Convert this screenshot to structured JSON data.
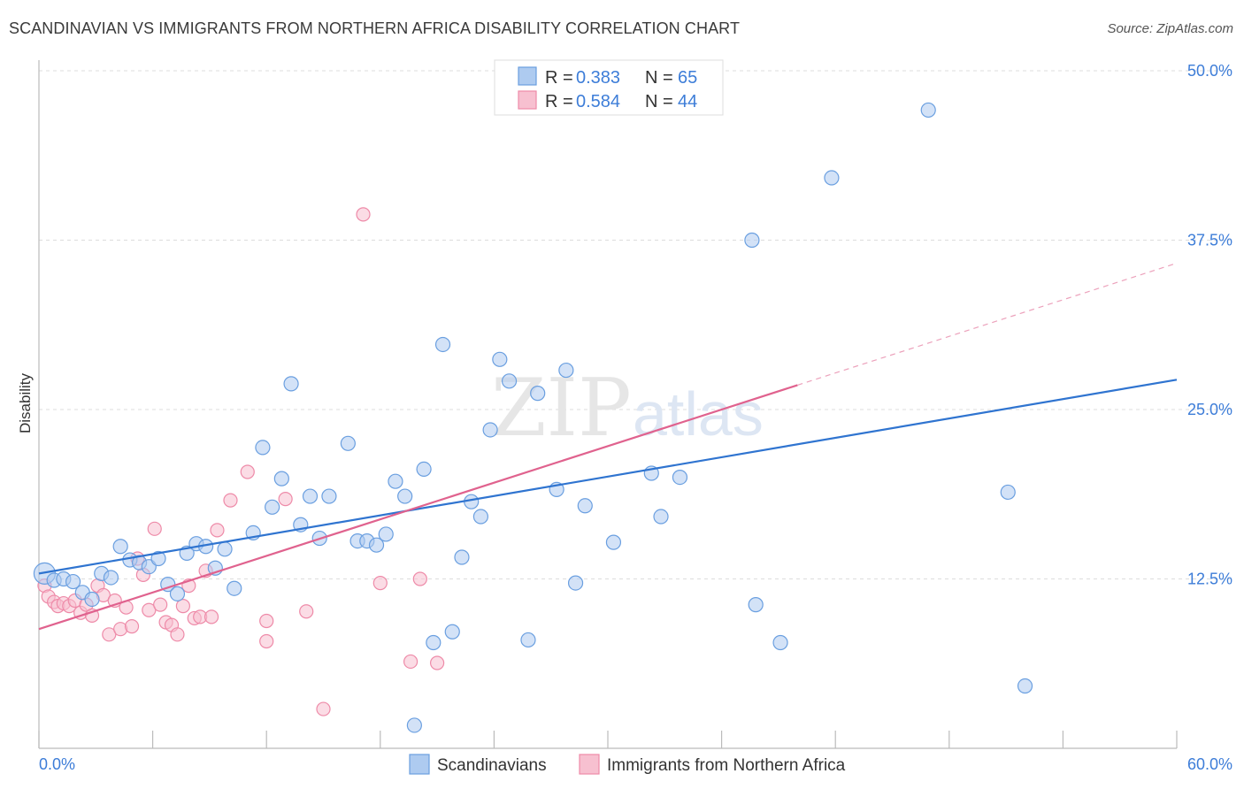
{
  "title": "SCANDINAVIAN VS IMMIGRANTS FROM NORTHERN AFRICA DISABILITY CORRELATION CHART",
  "source": "Source: ZipAtlas.com",
  "watermark": {
    "left": "ZIP",
    "right": "atlas"
  },
  "colors": {
    "blue_fill": "#aecbf0",
    "blue_stroke": "#6a9fe0",
    "blue_line": "#2f74d0",
    "pink_fill": "#f7c0d0",
    "pink_stroke": "#ee8aa8",
    "pink_line": "#e0628e",
    "tick_text": "#3d7dd8",
    "grid": "#dddddd"
  },
  "legend": {
    "rows": [
      {
        "r_label": "R = ",
        "r_value": "0.383",
        "n_label": "N = ",
        "n_value": "65"
      },
      {
        "r_label": "R = ",
        "r_value": "0.584",
        "n_label": "N = ",
        "n_value": "44"
      }
    ],
    "bottom": [
      "Scandinavians",
      "Immigrants from Northern Africa"
    ]
  },
  "chart_data": {
    "type": "scatter",
    "title": "SCANDINAVIAN VS IMMIGRANTS FROM NORTHERN AFRICA DISABILITY CORRELATION CHART",
    "xlabel": "",
    "ylabel": "Disability",
    "xlim": [
      0,
      60
    ],
    "ylim": [
      0,
      50
    ],
    "x_ticks": [
      0,
      6,
      12,
      18,
      24,
      30,
      36,
      42,
      48,
      54,
      60
    ],
    "x_tick_labels": {
      "0": "0.0%",
      "60": "60.0%"
    },
    "y_ticks": [
      12.5,
      25.0,
      37.5,
      50.0
    ],
    "y_tick_labels": [
      "12.5%",
      "25.0%",
      "37.5%",
      "50.0%"
    ],
    "grid": true,
    "legend_placement": "top-center",
    "series": [
      {
        "name": "Scandinavians",
        "color": "#aecbf0",
        "points": [
          [
            0.3,
            12.9
          ],
          [
            0.8,
            12.4
          ],
          [
            1.3,
            12.5
          ],
          [
            1.8,
            12.3
          ],
          [
            2.3,
            11.5
          ],
          [
            2.8,
            11.0
          ],
          [
            3.3,
            12.9
          ],
          [
            3.8,
            12.6
          ],
          [
            4.3,
            14.9
          ],
          [
            4.8,
            13.9
          ],
          [
            5.3,
            13.7
          ],
          [
            5.8,
            13.4
          ],
          [
            6.3,
            14.0
          ],
          [
            6.8,
            12.1
          ],
          [
            7.3,
            11.4
          ],
          [
            7.8,
            14.4
          ],
          [
            8.3,
            15.1
          ],
          [
            8.8,
            14.9
          ],
          [
            9.3,
            13.3
          ],
          [
            9.8,
            14.7
          ],
          [
            10.3,
            11.8
          ],
          [
            11.3,
            15.9
          ],
          [
            11.8,
            22.2
          ],
          [
            12.3,
            17.8
          ],
          [
            12.8,
            19.9
          ],
          [
            13.3,
            26.9
          ],
          [
            13.8,
            16.5
          ],
          [
            14.3,
            18.6
          ],
          [
            14.8,
            15.5
          ],
          [
            15.3,
            18.6
          ],
          [
            16.3,
            22.5
          ],
          [
            16.8,
            15.3
          ],
          [
            17.3,
            15.3
          ],
          [
            17.8,
            15.0
          ],
          [
            18.3,
            15.8
          ],
          [
            18.8,
            19.7
          ],
          [
            19.3,
            18.6
          ],
          [
            19.8,
            1.7
          ],
          [
            20.3,
            20.6
          ],
          [
            20.8,
            7.8
          ],
          [
            21.3,
            29.8
          ],
          [
            21.8,
            8.6
          ],
          [
            22.3,
            14.1
          ],
          [
            22.8,
            18.2
          ],
          [
            23.3,
            17.1
          ],
          [
            23.8,
            23.5
          ],
          [
            24.3,
            28.7
          ],
          [
            24.8,
            27.1
          ],
          [
            25.8,
            8.0
          ],
          [
            26.3,
            26.2
          ],
          [
            27.3,
            19.1
          ],
          [
            27.8,
            27.9
          ],
          [
            28.3,
            12.2
          ],
          [
            28.8,
            17.9
          ],
          [
            30.3,
            15.2
          ],
          [
            32.3,
            20.3
          ],
          [
            32.8,
            17.1
          ],
          [
            33.8,
            20.0
          ],
          [
            37.6,
            37.5
          ],
          [
            37.8,
            10.6
          ],
          [
            39.1,
            7.8
          ],
          [
            41.8,
            42.1
          ],
          [
            46.9,
            47.1
          ],
          [
            51.1,
            18.9
          ],
          [
            52.0,
            4.6
          ]
        ]
      },
      {
        "name": "Immigrants from Northern Africa",
        "color": "#f7c0d0",
        "points": [
          [
            0.3,
            12.0
          ],
          [
            0.5,
            11.2
          ],
          [
            0.8,
            10.8
          ],
          [
            1.0,
            10.5
          ],
          [
            1.3,
            10.7
          ],
          [
            1.6,
            10.5
          ],
          [
            1.9,
            10.9
          ],
          [
            2.2,
            10.0
          ],
          [
            2.5,
            10.6
          ],
          [
            2.8,
            9.8
          ],
          [
            3.1,
            12.0
          ],
          [
            3.4,
            11.3
          ],
          [
            3.7,
            8.4
          ],
          [
            4.0,
            10.9
          ],
          [
            4.3,
            8.8
          ],
          [
            4.6,
            10.4
          ],
          [
            4.9,
            9.0
          ],
          [
            5.2,
            14.0
          ],
          [
            5.5,
            12.8
          ],
          [
            5.8,
            10.2
          ],
          [
            6.1,
            16.2
          ],
          [
            6.4,
            10.6
          ],
          [
            6.7,
            9.3
          ],
          [
            7.0,
            9.1
          ],
          [
            7.3,
            8.4
          ],
          [
            7.6,
            10.5
          ],
          [
            7.9,
            12.0
          ],
          [
            8.2,
            9.6
          ],
          [
            8.5,
            9.7
          ],
          [
            8.8,
            13.1
          ],
          [
            9.1,
            9.7
          ],
          [
            9.4,
            16.1
          ],
          [
            10.1,
            18.3
          ],
          [
            11.0,
            20.4
          ],
          [
            12.0,
            7.9
          ],
          [
            12.0,
            9.4
          ],
          [
            13.0,
            18.4
          ],
          [
            14.1,
            10.1
          ],
          [
            15.0,
            2.9
          ],
          [
            17.1,
            39.4
          ],
          [
            18.0,
            12.2
          ],
          [
            19.6,
            6.4
          ],
          [
            20.1,
            12.5
          ],
          [
            21.0,
            6.3
          ]
        ]
      }
    ],
    "trendlines": [
      {
        "series": "Scandinavians",
        "x": [
          0,
          60
        ],
        "y": [
          12.9,
          27.2
        ]
      },
      {
        "series": "Immigrants from Northern Africa",
        "x": [
          0,
          60
        ],
        "y": [
          8.8,
          35.8
        ],
        "solid_until_x": 40
      }
    ]
  }
}
